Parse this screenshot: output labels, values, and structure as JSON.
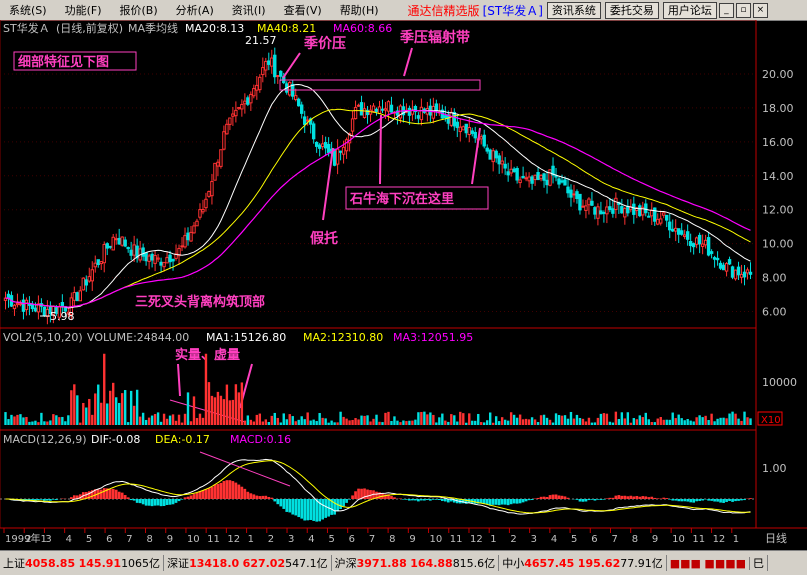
{
  "menu": {
    "items": [
      "系统(S)",
      "功能(F)",
      "报价(B)",
      "分析(A)",
      "资讯(I)",
      "查看(V)",
      "帮助(H)"
    ],
    "app_title": "通达信精选版",
    "stock_label": "[ST华发Ａ]",
    "buttons": [
      "资讯系统",
      "委托交易",
      "用户论坛"
    ],
    "window_buttons": [
      "_",
      "▫",
      "×"
    ]
  },
  "price_panel": {
    "stock_name": "ST华发Ａ",
    "period": "(日线,前复权)",
    "ma_label": "MA季均线",
    "ma20": "MA20:8.13",
    "ma40": "MA40:8.21",
    "ma60": "MA60:8.66",
    "high_label": "21.57",
    "low_label": "5.98"
  },
  "volume_panel": {
    "title": "VOL2(5,10,20)",
    "volume": "VOLUME:24844.00",
    "ma1": "MA1:15126.80",
    "ma2": "MA2:12310.80",
    "ma3": "MA3:12051.95",
    "scale_label": "10000",
    "unit_label": "X10"
  },
  "macd_panel": {
    "title": "MACD(12,26,9)",
    "dif": "DIF:-0.08",
    "dea": "DEA:-0.17",
    "macd": "MACD:0.16",
    "scale_label": "1.00"
  },
  "annotations": {
    "detail_box": "细部特征见下图",
    "price_pressure": "季价压",
    "pressure_band": "季压辐射带",
    "fake_support": "假托",
    "sink_here": "石牛海下沉在这里",
    "top_structure": "三死叉头背离构筑顶部",
    "volume_note": "实量、虚量"
  },
  "colors": {
    "up": "#ff3232",
    "down": "#00e0e0",
    "ma20": "#ffffff",
    "ma40": "#ffff00",
    "ma60": "#ff00ff",
    "annotation": "#ff40c0"
  },
  "axis": {
    "months": [
      "1999年1",
      "2",
      "3",
      "4",
      "5",
      "6",
      "7",
      "8",
      "9",
      "10",
      "11",
      "12",
      "1",
      "2",
      "3",
      "4",
      "5",
      "6",
      "7",
      "8",
      "9",
      "10",
      "11",
      "12",
      "1",
      "2",
      "3",
      "4",
      "5",
      "6",
      "7",
      "8",
      "9",
      "10",
      "11",
      "12",
      "1"
    ],
    "period_label": "日线"
  },
  "chart_data": {
    "type": "line",
    "price_ticks": [
      6.0,
      8.0,
      10.0,
      12.0,
      14.0,
      16.0,
      18.0,
      20.0
    ],
    "ylim": [
      5.5,
      22
    ],
    "close_profile": [
      6.8,
      6.3,
      6.1,
      6.4,
      8.5,
      10.5,
      9.4,
      9.0,
      9.6,
      12.0,
      16.5,
      18.5,
      20.8,
      19.0,
      16.5,
      14.8,
      17.8,
      18.2,
      18.0,
      17.8,
      17.6,
      17.0,
      15.5,
      14.0,
      13.5,
      14.0,
      12.5,
      12.0,
      12.3,
      11.8,
      11.5,
      10.5,
      9.8,
      8.5,
      8.2
    ]
  },
  "status": {
    "sh_label": "上证",
    "sh_value": "4058.85",
    "sh_change": "145.91",
    "sh_amount": "1065亿",
    "sz_label": "深证",
    "sz_value": "13418.0",
    "sz_change": "627.02",
    "sz_amount": "547.1亿",
    "hs_label": "沪深",
    "hs_value": "3971.88",
    "hs_change": "164.88",
    "hs_amount": "815.6亿",
    "zx_label": "中小",
    "zx_value": "4657.45",
    "zx_change": "195.62",
    "zx_amount": "77.91亿",
    "right_label": "巳"
  }
}
